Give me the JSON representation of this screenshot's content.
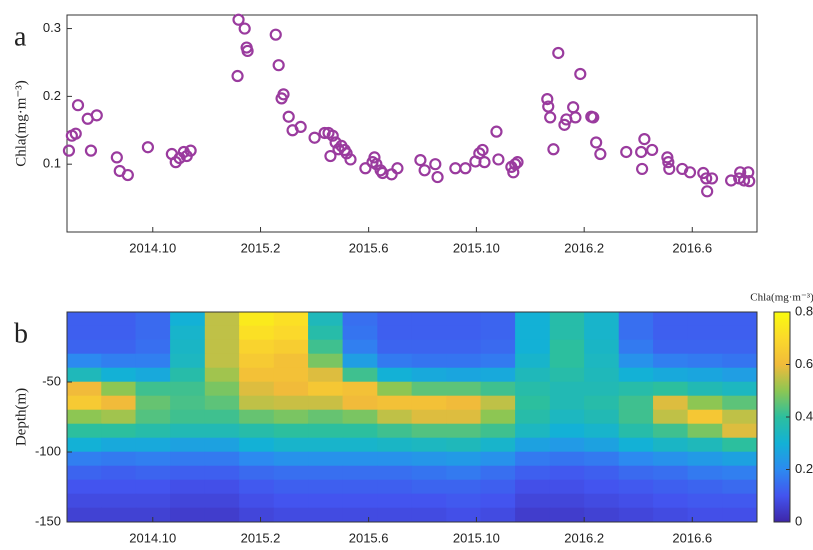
{
  "chart_data": [
    {
      "type": "scatter",
      "label": "a",
      "y_label": "Chla(mg·m⁻³)",
      "color": "#9a3b9e",
      "xlim": [
        2014.485,
        2016.617
      ],
      "ylim": [
        0,
        0.32
      ],
      "xticks": [
        {
          "value": 2014.75,
          "label": "2014.10"
        },
        {
          "value": 2015.083,
          "label": "2015.2"
        },
        {
          "value": 2015.417,
          "label": "2015.6"
        },
        {
          "value": 2015.75,
          "label": "2015.10"
        },
        {
          "value": 2016.083,
          "label": "2016.2"
        },
        {
          "value": 2016.417,
          "label": "2016.6"
        }
      ],
      "yticks": [
        0.1,
        0.2,
        0.3
      ],
      "x": [
        2014.491,
        2014.5,
        2014.512,
        2014.519,
        2014.549,
        2014.559,
        2014.577,
        2014.639,
        2014.648,
        2014.673,
        2014.735,
        2014.809,
        2014.821,
        2014.833,
        2014.846,
        2014.855,
        2014.867,
        2015.012,
        2015.015,
        2015.034,
        2015.04,
        2015.043,
        2015.13,
        2015.139,
        2015.148,
        2015.154,
        2015.17,
        2015.182,
        2015.207,
        2015.25,
        2015.281,
        2015.293,
        2015.299,
        2015.306,
        2015.315,
        2015.324,
        2015.333,
        2015.343,
        2015.349,
        2015.361,
        2015.407,
        2015.429,
        2015.435,
        2015.441,
        2015.454,
        2015.46,
        2015.488,
        2015.506,
        2015.577,
        2015.59,
        2015.623,
        2015.63,
        2015.685,
        2015.716,
        2015.747,
        2015.759,
        2015.769,
        2015.775,
        2015.812,
        2015.818,
        2015.858,
        2015.864,
        2015.87,
        2015.877,
        2015.969,
        2015.972,
        2015.978,
        2015.988,
        2016.003,
        2016.022,
        2016.028,
        2016.049,
        2016.056,
        2016.071,
        2016.105,
        2016.111,
        2016.12,
        2016.133,
        2016.213,
        2016.259,
        2016.262,
        2016.269,
        2016.293,
        2016.34,
        2016.343,
        2016.346,
        2016.386,
        2016.41,
        2016.451,
        2016.46,
        2016.463,
        2016.478,
        2016.537,
        2016.562,
        2016.565,
        2016.577,
        2016.59,
        2016.593
      ],
      "values": [
        0.12,
        0.142,
        0.145,
        0.187,
        0.167,
        0.12,
        0.172,
        0.11,
        0.09,
        0.084,
        0.125,
        0.115,
        0.103,
        0.109,
        0.118,
        0.112,
        0.12,
        0.23,
        0.313,
        0.3,
        0.272,
        0.267,
        0.291,
        0.246,
        0.197,
        0.203,
        0.17,
        0.15,
        0.155,
        0.139,
        0.146,
        0.146,
        0.112,
        0.142,
        0.132,
        0.122,
        0.127,
        0.121,
        0.116,
        0.107,
        0.094,
        0.103,
        0.11,
        0.1,
        0.091,
        0.087,
        0.085,
        0.094,
        0.106,
        0.091,
        0.1,
        0.081,
        0.094,
        0.094,
        0.104,
        0.116,
        0.121,
        0.103,
        0.148,
        0.107,
        0.096,
        0.088,
        0.1,
        0.103,
        0.196,
        0.185,
        0.169,
        0.122,
        0.264,
        0.158,
        0.166,
        0.184,
        0.169,
        0.233,
        0.17,
        0.169,
        0.132,
        0.115,
        0.118,
        0.118,
        0.093,
        0.137,
        0.121,
        0.11,
        0.103,
        0.093,
        0.093,
        0.088,
        0.087,
        0.079,
        0.06,
        0.079,
        0.076,
        0.079,
        0.088,
        0.076,
        0.088,
        0.075
      ]
    },
    {
      "type": "heatmap",
      "label": "b",
      "y_label": "Depth(m)",
      "colorbar_label": "Chla(mg·m⁻³)",
      "colormap": [
        "#3e26a8",
        "#4354ef",
        "#2c8af0",
        "#13b1d6",
        "#2cbf9e",
        "#8dc653",
        "#f1bb3a",
        "#fbd92b",
        "#f9fb0e"
      ],
      "xlim": [
        2014.485,
        2016.617
      ],
      "ylim": [
        -150,
        0
      ],
      "zlim": [
        0,
        0.8
      ],
      "xticks": [
        {
          "value": 2014.75,
          "label": "2014.10"
        },
        {
          "value": 2015.083,
          "label": "2015.2"
        },
        {
          "value": 2015.417,
          "label": "2015.6"
        },
        {
          "value": 2015.75,
          "label": "2015.10"
        },
        {
          "value": 2016.083,
          "label": "2016.2"
        },
        {
          "value": 2016.417,
          "label": "2016.6"
        }
      ],
      "yticks": [
        -50,
        -100,
        -150
      ],
      "zticks": [
        0,
        0.2,
        0.4,
        0.6,
        0.8
      ],
      "x": [
        2014.538,
        2014.645,
        2014.751,
        2014.858,
        2014.965,
        2015.071,
        2015.178,
        2015.284,
        2015.391,
        2015.498,
        2015.604,
        2015.711,
        2015.817,
        2015.924,
        2016.031,
        2016.137,
        2016.244,
        2016.35,
        2016.457,
        2016.564
      ],
      "y": [
        -5,
        -15,
        -25,
        -35,
        -45,
        -55,
        -65,
        -75,
        -85,
        -95,
        -105,
        -115,
        -125,
        -135,
        -145
      ],
      "z": [
        [
          0.12,
          0.12,
          0.14,
          0.3,
          0.55,
          0.75,
          0.72,
          0.35,
          0.15,
          0.12,
          0.12,
          0.12,
          0.13,
          0.3,
          0.38,
          0.32,
          0.15,
          0.12,
          0.12,
          0.12
        ],
        [
          0.12,
          0.12,
          0.14,
          0.32,
          0.55,
          0.72,
          0.7,
          0.38,
          0.16,
          0.12,
          0.12,
          0.12,
          0.13,
          0.3,
          0.38,
          0.32,
          0.15,
          0.12,
          0.12,
          0.12
        ],
        [
          0.13,
          0.13,
          0.15,
          0.33,
          0.55,
          0.68,
          0.66,
          0.42,
          0.18,
          0.13,
          0.13,
          0.13,
          0.14,
          0.3,
          0.4,
          0.33,
          0.17,
          0.13,
          0.13,
          0.13
        ],
        [
          0.2,
          0.18,
          0.18,
          0.34,
          0.55,
          0.65,
          0.62,
          0.48,
          0.25,
          0.17,
          0.16,
          0.16,
          0.17,
          0.32,
          0.4,
          0.34,
          0.22,
          0.18,
          0.17,
          0.16
        ],
        [
          0.35,
          0.3,
          0.28,
          0.38,
          0.52,
          0.62,
          0.62,
          0.58,
          0.42,
          0.3,
          0.28,
          0.27,
          0.28,
          0.35,
          0.38,
          0.35,
          0.3,
          0.28,
          0.27,
          0.25
        ],
        [
          0.6,
          0.5,
          0.42,
          0.42,
          0.48,
          0.58,
          0.6,
          0.64,
          0.62,
          0.5,
          0.45,
          0.45,
          0.42,
          0.38,
          0.36,
          0.36,
          0.38,
          0.4,
          0.36,
          0.34
        ],
        [
          0.65,
          0.6,
          0.46,
          0.43,
          0.45,
          0.55,
          0.56,
          0.56,
          0.6,
          0.62,
          0.62,
          0.6,
          0.55,
          0.4,
          0.36,
          0.38,
          0.42,
          0.58,
          0.5,
          0.45
        ],
        [
          0.5,
          0.52,
          0.44,
          0.42,
          0.42,
          0.46,
          0.48,
          0.46,
          0.48,
          0.55,
          0.58,
          0.58,
          0.5,
          0.38,
          0.34,
          0.36,
          0.42,
          0.55,
          0.64,
          0.55
        ],
        [
          0.4,
          0.4,
          0.38,
          0.36,
          0.36,
          0.38,
          0.4,
          0.4,
          0.4,
          0.42,
          0.44,
          0.44,
          0.42,
          0.34,
          0.3,
          0.32,
          0.38,
          0.42,
          0.48,
          0.58
        ],
        [
          0.3,
          0.28,
          0.28,
          0.26,
          0.26,
          0.3,
          0.32,
          0.32,
          0.32,
          0.33,
          0.34,
          0.35,
          0.32,
          0.26,
          0.24,
          0.26,
          0.3,
          0.33,
          0.35,
          0.4
        ],
        [
          0.18,
          0.17,
          0.18,
          0.17,
          0.17,
          0.2,
          0.22,
          0.22,
          0.22,
          0.22,
          0.23,
          0.24,
          0.22,
          0.17,
          0.16,
          0.17,
          0.2,
          0.22,
          0.24,
          0.26
        ],
        [
          0.13,
          0.12,
          0.13,
          0.12,
          0.12,
          0.14,
          0.15,
          0.15,
          0.15,
          0.15,
          0.16,
          0.17,
          0.15,
          0.12,
          0.11,
          0.12,
          0.14,
          0.15,
          0.17,
          0.18
        ],
        [
          0.1,
          0.1,
          0.1,
          0.09,
          0.09,
          0.11,
          0.12,
          0.12,
          0.12,
          0.12,
          0.13,
          0.13,
          0.12,
          0.09,
          0.09,
          0.1,
          0.11,
          0.12,
          0.13,
          0.14
        ],
        [
          0.08,
          0.08,
          0.08,
          0.07,
          0.07,
          0.09,
          0.1,
          0.1,
          0.1,
          0.1,
          0.1,
          0.11,
          0.1,
          0.07,
          0.07,
          0.08,
          0.09,
          0.1,
          0.11,
          0.11
        ],
        [
          0.06,
          0.06,
          0.06,
          0.05,
          0.05,
          0.07,
          0.08,
          0.08,
          0.08,
          0.08,
          0.08,
          0.09,
          0.08,
          0.05,
          0.05,
          0.06,
          0.07,
          0.08,
          0.09,
          0.09
        ]
      ]
    }
  ]
}
